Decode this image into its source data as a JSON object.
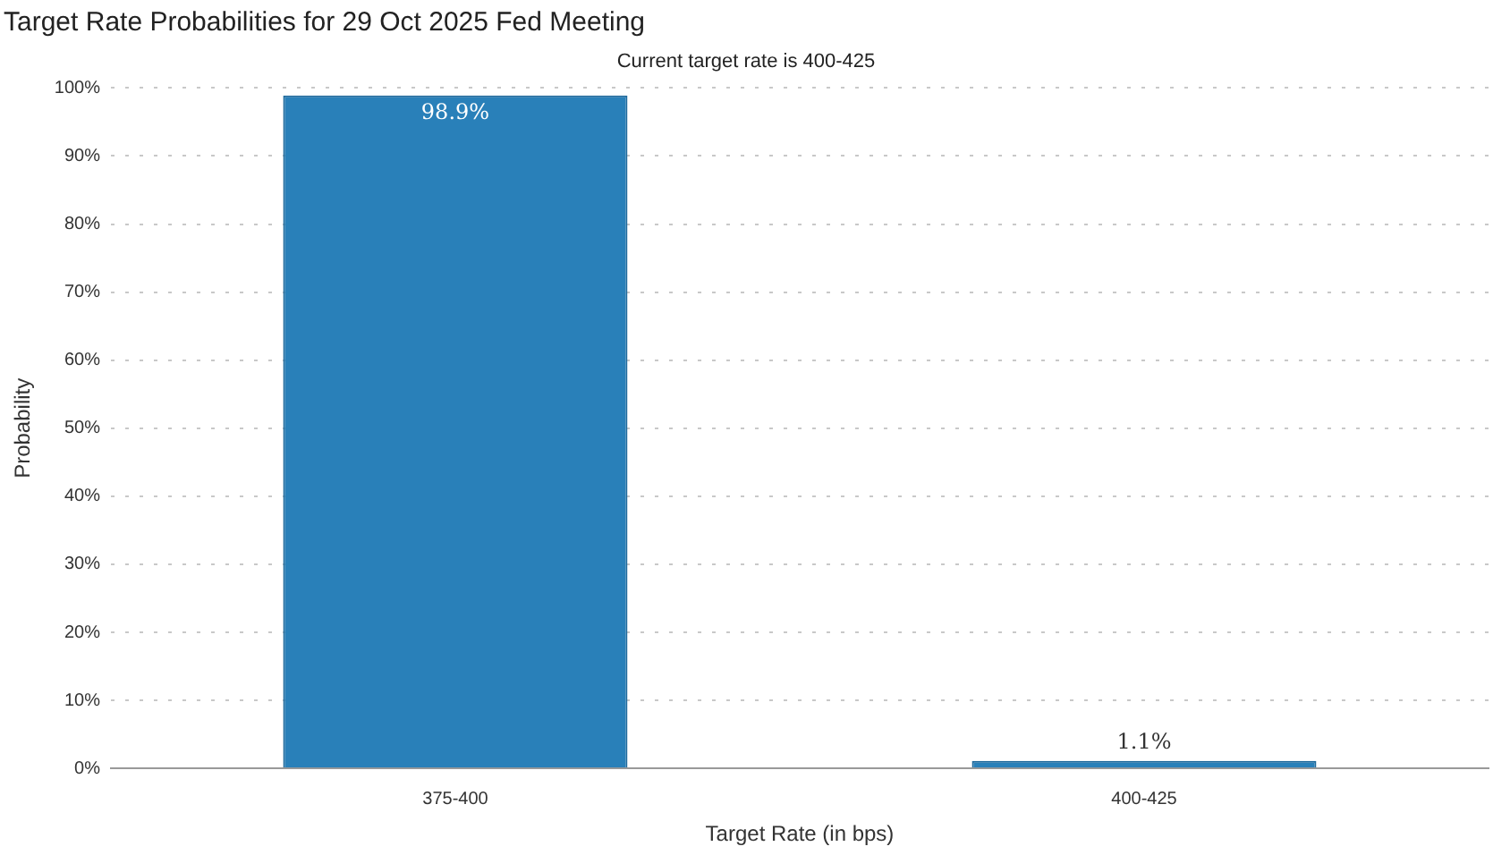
{
  "chart_data": {
    "type": "bar",
    "title": "Target Rate Probabilities for 29 Oct 2025 Fed Meeting",
    "subtitle": "Current target rate is 400-425",
    "xlabel": "Target Rate (in bps)",
    "ylabel": "Probability",
    "categories": [
      "375-400",
      "400-425"
    ],
    "values": [
      98.9,
      1.1
    ],
    "color": "#2980b9",
    "value_labels": [
      "98.9%",
      "1.1%"
    ],
    "ylim": [
      0,
      100
    ],
    "yticks": [
      {
        "value": 0,
        "label": "0%"
      },
      {
        "value": 10,
        "label": "10%"
      },
      {
        "value": 20,
        "label": "20%"
      },
      {
        "value": 30,
        "label": "30%"
      },
      {
        "value": 40,
        "label": "40%"
      },
      {
        "value": 50,
        "label": "50%"
      },
      {
        "value": 60,
        "label": "60%"
      },
      {
        "value": 70,
        "label": "70%"
      },
      {
        "value": 80,
        "label": "80%"
      },
      {
        "value": 90,
        "label": "90%"
      },
      {
        "value": 100,
        "label": "100%"
      }
    ],
    "grid": "y"
  }
}
